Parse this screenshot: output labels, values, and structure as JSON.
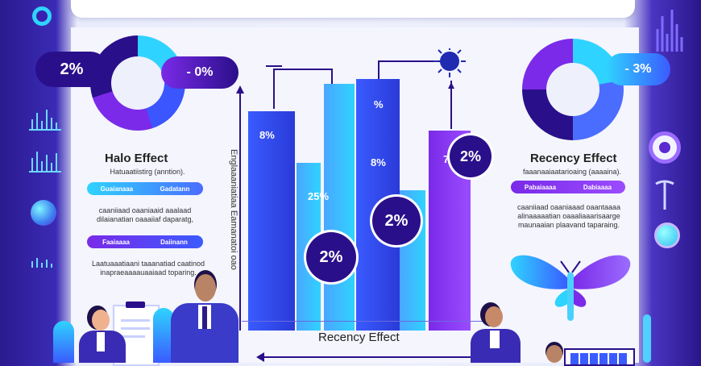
{
  "left": {
    "donut_value": "2%",
    "donut_badge": "- 0%",
    "title": "Halo Effect",
    "line1": "Hatuaatiistirg (anntion).",
    "tag1_a": "Guaianaaa",
    "tag1_b": "Gadatann",
    "para1": "caaniiaad oaaniaaid aaalaad\ndilaianatian oaaaiiaf daparatg,",
    "tag2_a": "Faaiaaaa",
    "tag2_b": "Daiinann",
    "para2": "Laatuaaatiaani taaanatiad caatinod\ninapraeaaaauaaiaad toparing."
  },
  "right": {
    "donut_badge": "- 3%",
    "title": "Recency Effect",
    "line1": "faaanaaiaatarioaing (aaaaina).",
    "tag1_a": "Pabaiaaaa",
    "tag1_b": "Dabiaaaa",
    "para1": "caaniiaad oaaniaaad oaantaaaa\nalinaaaaatian oaaaliaaarisaarge\nmaunaaian plaavand taparaing."
  },
  "chart": {
    "y_axis_label": "Englaaaniatiaa Eamanatoi oao",
    "x_axis_label": "Recency Effect",
    "bar_label_1": "8%",
    "bar_label_2": "25%",
    "bar_label_3": "8%",
    "bar_label_4": "%",
    "bar_label_5": "7",
    "circle_1": "2%",
    "circle_2": "2%",
    "circle_3": "2%"
  },
  "colors": {
    "primary": "#2a0f8a",
    "cyan": "#2fd3ff",
    "blue": "#3a5bff",
    "violet": "#7a2ae8"
  }
}
